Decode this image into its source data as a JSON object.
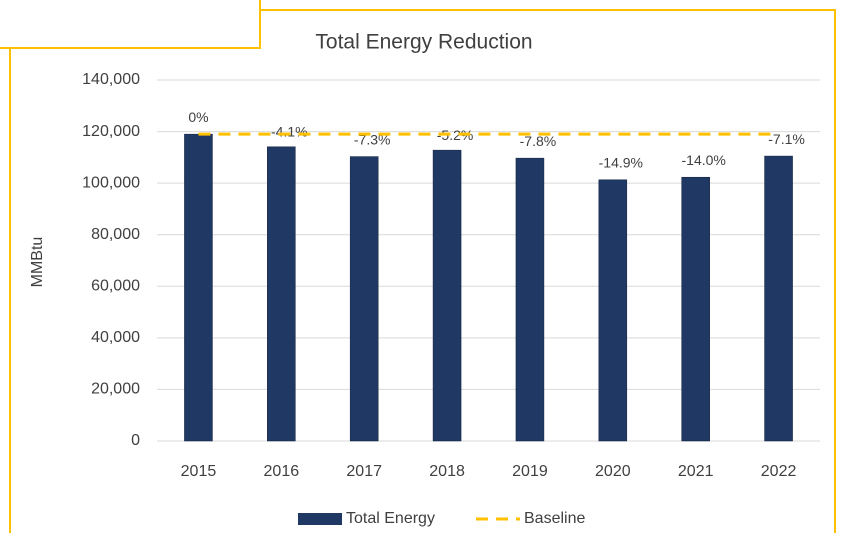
{
  "chart_data": {
    "type": "bar",
    "title": "Total Energy Reduction",
    "y_label": "MMBtu",
    "categories": [
      "2015",
      "2016",
      "2017",
      "2018",
      "2019",
      "2020",
      "2021",
      "2022"
    ],
    "series": [
      {
        "name": "Total Energy",
        "color": "#1f3864",
        "values": [
          119000,
          114100,
          110300,
          112800,
          109700,
          101300,
          102300,
          110500
        ],
        "bar_labels": [
          "0%",
          "-4.1%",
          "-7.3%",
          "-5.2%",
          "-7.8%",
          "-14.9%",
          "-14.0%",
          "-7.1%"
        ]
      },
      {
        "name": "Baseline",
        "type": "line",
        "dashed": true,
        "color": "#ffc000",
        "values": [
          119000,
          119000,
          119000,
          119000,
          119000,
          119000,
          119000,
          119000
        ]
      }
    ],
    "ylim": [
      0,
      140000
    ],
    "yticks": [
      0,
      {
        "value": 20000,
        "label": "20,000"
      },
      {
        "value": 40000,
        "label": "40,000"
      },
      {
        "value": 60000,
        "label": "60,000"
      },
      {
        "value": 80000,
        "label": "80,000"
      },
      {
        "value": 100000,
        "label": "100,000"
      },
      {
        "value": 120000,
        "label": "120,000"
      },
      {
        "value": 140000,
        "label": "140,000"
      }
    ],
    "grid": true,
    "legend": "bottom"
  }
}
